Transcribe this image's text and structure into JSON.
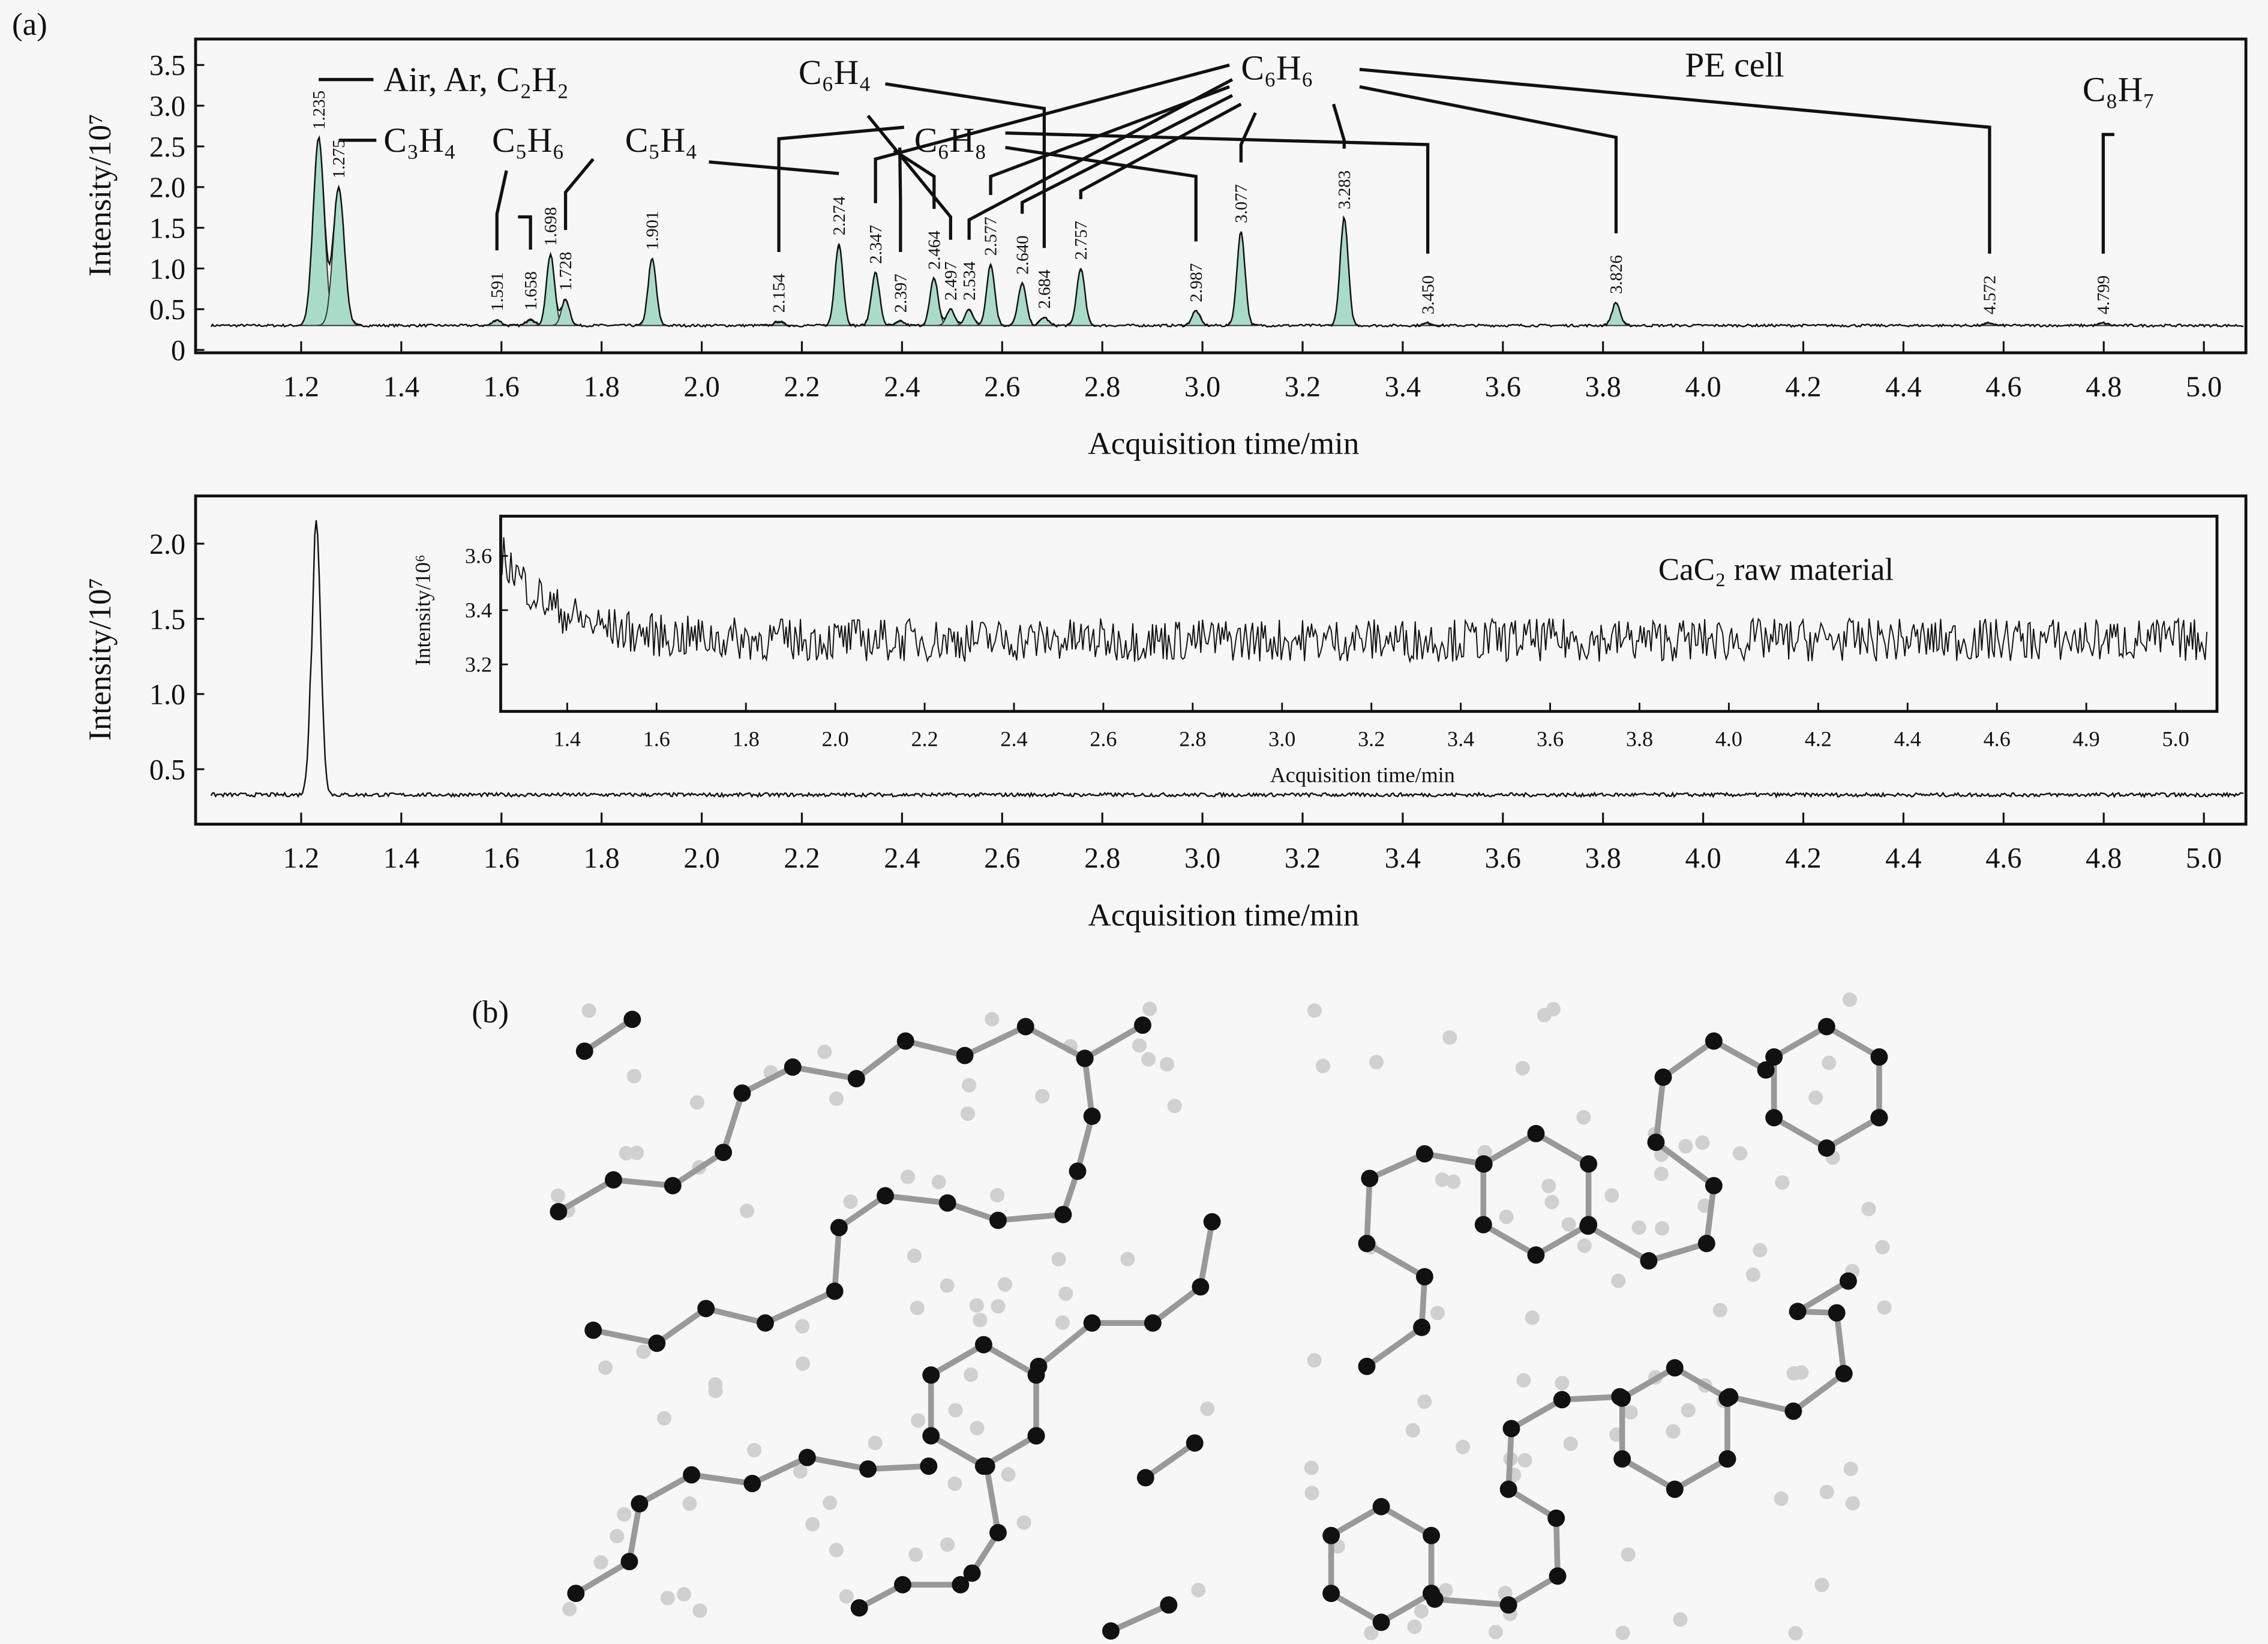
{
  "panel_a_label": "(a)",
  "panel_b_label": "(b)",
  "chart_data": [
    {
      "type": "line",
      "name": "PE cell chromatogram",
      "annotation": "PE cell",
      "xlabel": "Acquisition time/min",
      "ylabel": "Intensity/10⁷",
      "xlim": [
        1.02,
        5.08
      ],
      "ylim": [
        0,
        3.9
      ],
      "xticks": [
        "1.2",
        "1.4",
        "1.6",
        "1.8",
        "2.0",
        "2.2",
        "2.4",
        "2.6",
        "2.8",
        "3.0",
        "3.2",
        "3.4",
        "3.6",
        "3.8",
        "4.0",
        "4.2",
        "4.4",
        "4.6",
        "4.8",
        "5.0"
      ],
      "yticks": [
        "0",
        "0.5",
        "1.0",
        "1.5",
        "2.0",
        "2.5",
        "3.0",
        "3.5"
      ],
      "baseline": 0.3,
      "peaks": [
        {
          "rt": "1.235",
          "height": 2.6
        },
        {
          "rt": "1.275",
          "height": 2.0
        },
        {
          "rt": "1.591",
          "height": 0.37
        },
        {
          "rt": "1.658",
          "height": 0.38
        },
        {
          "rt": "1.698",
          "height": 1.17
        },
        {
          "rt": "1.728",
          "height": 0.62
        },
        {
          "rt": "1.901",
          "height": 1.12
        },
        {
          "rt": "2.154",
          "height": 0.35
        },
        {
          "rt": "2.274",
          "height": 1.3
        },
        {
          "rt": "2.347",
          "height": 0.95
        },
        {
          "rt": "2.397",
          "height": 0.35
        },
        {
          "rt": "2.464",
          "height": 0.88
        },
        {
          "rt": "2.497",
          "height": 0.5
        },
        {
          "rt": "2.534",
          "height": 0.5
        },
        {
          "rt": "2.577",
          "height": 1.05
        },
        {
          "rt": "2.640",
          "height": 0.82
        },
        {
          "rt": "2.684",
          "height": 0.4
        },
        {
          "rt": "2.757",
          "height": 1.0
        },
        {
          "rt": "2.987",
          "height": 0.48
        },
        {
          "rt": "3.077",
          "height": 1.45
        },
        {
          "rt": "3.283",
          "height": 1.62
        },
        {
          "rt": "3.450",
          "height": 0.33
        },
        {
          "rt": "3.826",
          "height": 0.58
        },
        {
          "rt": "4.572",
          "height": 0.33
        },
        {
          "rt": "4.799",
          "height": 0.33
        }
      ],
      "compounds": [
        {
          "name": "Air, Ar, C₂H₂",
          "peaks": [
            "1.235"
          ]
        },
        {
          "name": "C₃H₄",
          "peaks": [
            "1.275"
          ]
        },
        {
          "name": "C₅H₆",
          "peaks": [
            "1.591",
            "1.658"
          ]
        },
        {
          "name": "C₅H₄",
          "peaks": [
            "1.728",
            "2.274"
          ]
        },
        {
          "name": "C₆H₄",
          "peaks": [
            "2.684",
            "2.497"
          ]
        },
        {
          "name": "C₆H₈",
          "peaks": [
            "2.154",
            "2.397",
            "2.464",
            "2.987",
            "3.450"
          ]
        },
        {
          "name": "C₆H₆",
          "peaks": [
            "2.347",
            "2.534",
            "2.577",
            "2.640",
            "2.757",
            "3.077",
            "3.283",
            "3.826",
            "4.572"
          ]
        },
        {
          "name": "C₈H₇",
          "peaks": [
            "4.799"
          ]
        }
      ]
    },
    {
      "type": "line",
      "name": "CaC2 raw material chromatogram",
      "xlabel": "Acquisition time/min",
      "ylabel": "Intensity/10⁷",
      "xlim": [
        1.02,
        5.08
      ],
      "ylim": [
        0.0,
        2.3
      ],
      "xticks": [
        "1.2",
        "1.4",
        "1.6",
        "1.8",
        "2.0",
        "2.2",
        "2.4",
        "2.6",
        "2.8",
        "3.0",
        "3.2",
        "3.4",
        "3.6",
        "3.8",
        "4.0",
        "4.2",
        "4.4",
        "4.6",
        "4.8",
        "5.0"
      ],
      "yticks": [
        "0.5",
        "1.0",
        "1.5",
        "2.0"
      ],
      "baseline": 0.33,
      "peaks": [
        {
          "rt": "1.23",
          "height": 2.15
        }
      ]
    },
    {
      "type": "line",
      "name": "inset",
      "title": "CaC₂ raw material",
      "xlabel": "Acquisition time/min",
      "ylabel": "Intensity/10⁶",
      "xticks": [
        "1.4",
        "1.6",
        "1.8",
        "2.0",
        "2.2",
        "2.4",
        "2.6",
        "2.8",
        "3.0",
        "3.2",
        "3.4",
        "3.6",
        "3.8",
        "4.0",
        "4.2",
        "4.4",
        "4.6",
        "4.9",
        "5.0"
      ],
      "yticks": [
        "3.2",
        "3.4",
        "3.6"
      ],
      "ylim": [
        3.08,
        3.75
      ],
      "trend": {
        "start": 3.62,
        "end": 3.29
      }
    }
  ],
  "colors": {
    "peak_fill": "#a9dcc8",
    "line": "#111111",
    "atom": "#111111",
    "atom_faint": "#d0d0d0"
  }
}
